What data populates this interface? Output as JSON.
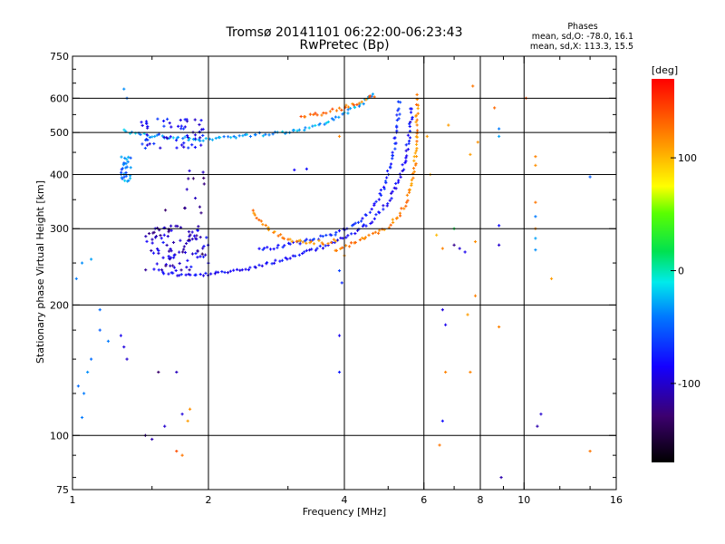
{
  "chart_data": {
    "type": "scatter",
    "title": "Tromsø 20141101 06:22:00-06:23:43",
    "subtitle": "RwPretec (Bp)",
    "xlabel": "Frequency [MHz]",
    "ylabel": "Stationary phase Virtual Height [km]",
    "x_scale": "log",
    "y_scale": "log",
    "xlim": [
      1,
      16
    ],
    "ylim": [
      75,
      750
    ],
    "x_ticks": [
      1,
      2,
      4,
      6,
      8,
      10,
      16
    ],
    "y_ticks": [
      75,
      100,
      200,
      300,
      400,
      500,
      600,
      750
    ],
    "x_gridlines": [
      2,
      4,
      6,
      8,
      10
    ],
    "y_gridlines": [
      100,
      200,
      300,
      400,
      500,
      600
    ],
    "grid": true,
    "colorbar": {
      "label": "[deg]",
      "range": [
        -170,
        170
      ],
      "ticks": [
        -100,
        0,
        100
      ],
      "colormap": "rainbow"
    },
    "phase_stats": {
      "title": "Phases",
      "line_o": "mean, sd,O: -78.0, 16.1",
      "line_x": "mean, sd,X: 113.3, 15.5"
    },
    "traces": [
      {
        "name": "",
        "phase_deg": -85,
        "points": [
          [
            1.55,
            240
          ],
          [
            1.65,
            236
          ],
          [
            1.8,
            234
          ],
          [
            2.0,
            235
          ],
          [
            2.3,
            240
          ],
          [
            2.6,
            247
          ],
          [
            3.0,
            256
          ],
          [
            3.4,
            267
          ],
          [
            3.8,
            279
          ],
          [
            4.2,
            293
          ],
          [
            4.6,
            313
          ],
          [
            5.0,
            345
          ],
          [
            5.3,
            390
          ],
          [
            5.5,
            450
          ],
          [
            5.6,
            520
          ],
          [
            5.65,
            580
          ]
        ]
      },
      {
        "name": "",
        "phase_deg": -72,
        "points": [
          [
            2.6,
            268
          ],
          [
            3.0,
            275
          ],
          [
            3.4,
            283
          ],
          [
            3.8,
            293
          ],
          [
            4.2,
            305
          ],
          [
            4.5,
            325
          ],
          [
            4.8,
            355
          ],
          [
            5.0,
            400
          ],
          [
            5.15,
            460
          ],
          [
            5.25,
            530
          ],
          [
            5.3,
            600
          ]
        ]
      },
      {
        "name": "",
        "phase_deg": 120,
        "points": [
          [
            3.8,
            268
          ],
          [
            4.2,
            278
          ],
          [
            4.6,
            290
          ],
          [
            5.0,
            303
          ],
          [
            5.3,
            322
          ],
          [
            5.55,
            355
          ],
          [
            5.7,
            400
          ],
          [
            5.78,
            470
          ],
          [
            5.8,
            540
          ],
          [
            5.82,
            620
          ]
        ]
      },
      {
        "name": "",
        "phase_deg": 118,
        "points": [
          [
            2.5,
            330
          ],
          [
            2.7,
            300
          ],
          [
            3.0,
            283
          ],
          [
            3.3,
            279
          ],
          [
            3.6,
            279
          ],
          [
            3.9,
            282
          ]
        ]
      },
      {
        "name": "",
        "phase_deg": -30,
        "points": [
          [
            1.3,
            505
          ],
          [
            1.5,
            490
          ],
          [
            1.7,
            485
          ],
          [
            1.9,
            482
          ],
          [
            2.1,
            485
          ],
          [
            2.3,
            490
          ],
          [
            2.6,
            495
          ],
          [
            2.9,
            500
          ],
          [
            3.2,
            508
          ],
          [
            3.5,
            520
          ],
          [
            3.8,
            540
          ],
          [
            4.1,
            560
          ],
          [
            4.4,
            585
          ],
          [
            4.7,
            620
          ]
        ]
      },
      {
        "name": "",
        "phase_deg": 130,
        "points": [
          [
            3.2,
            540
          ],
          [
            3.6,
            555
          ],
          [
            4.0,
            570
          ],
          [
            4.4,
            590
          ],
          [
            4.7,
            610
          ]
        ]
      }
    ],
    "clusters": [
      {
        "phase_deg": -100,
        "x_range": [
          1.45,
          2.0
        ],
        "y_range": [
          240,
          305
        ],
        "count": 90
      },
      {
        "phase_deg": -80,
        "x_range": [
          1.4,
          1.95
        ],
        "y_range": [
          460,
          540
        ],
        "count": 60
      },
      {
        "phase_deg": -40,
        "x_range": [
          1.28,
          1.35
        ],
        "y_range": [
          385,
          440
        ],
        "count": 28
      },
      {
        "phase_deg": -120,
        "x_range": [
          1.6,
          2.0
        ],
        "y_range": [
          260,
          420
        ],
        "count": 22
      }
    ],
    "scatter_points": [
      {
        "x": 1.02,
        "y": 230,
        "phase_deg": -40
      },
      {
        "x": 1.05,
        "y": 250,
        "phase_deg": -35
      },
      {
        "x": 1.1,
        "y": 255,
        "phase_deg": -30
      },
      {
        "x": 1.03,
        "y": 130,
        "phase_deg": -45
      },
      {
        "x": 1.06,
        "y": 125,
        "phase_deg": -40
      },
      {
        "x": 1.08,
        "y": 140,
        "phase_deg": -35
      },
      {
        "x": 1.1,
        "y": 150,
        "phase_deg": -45
      },
      {
        "x": 1.05,
        "y": 110,
        "phase_deg": -40
      },
      {
        "x": 1.15,
        "y": 175,
        "phase_deg": -50
      },
      {
        "x": 1.2,
        "y": 165,
        "phase_deg": -40
      },
      {
        "x": 1.3,
        "y": 160,
        "phase_deg": -95
      },
      {
        "x": 1.32,
        "y": 150,
        "phase_deg": -100
      },
      {
        "x": 1.28,
        "y": 170,
        "phase_deg": -90
      },
      {
        "x": 1.15,
        "y": 195,
        "phase_deg": -45
      },
      {
        "x": 1.45,
        "y": 100,
        "phase_deg": -120
      },
      {
        "x": 1.5,
        "y": 98,
        "phase_deg": -110
      },
      {
        "x": 1.6,
        "y": 105,
        "phase_deg": -100
      },
      {
        "x": 1.55,
        "y": 140,
        "phase_deg": -130
      },
      {
        "x": 1.7,
        "y": 140,
        "phase_deg": -105
      },
      {
        "x": 1.75,
        "y": 112,
        "phase_deg": -95
      },
      {
        "x": 1.8,
        "y": 108,
        "phase_deg": 110
      },
      {
        "x": 1.82,
        "y": 115,
        "phase_deg": 115
      },
      {
        "x": 1.75,
        "y": 90,
        "phase_deg": 125
      },
      {
        "x": 1.7,
        "y": 92,
        "phase_deg": 140
      },
      {
        "x": 1.3,
        "y": 630,
        "phase_deg": -35
      },
      {
        "x": 1.32,
        "y": 600,
        "phase_deg": -45
      },
      {
        "x": 3.1,
        "y": 410,
        "phase_deg": -85
      },
      {
        "x": 3.3,
        "y": 412,
        "phase_deg": -80
      },
      {
        "x": 3.9,
        "y": 240,
        "phase_deg": -60
      },
      {
        "x": 3.95,
        "y": 225,
        "phase_deg": -70
      },
      {
        "x": 3.9,
        "y": 170,
        "phase_deg": -90
      },
      {
        "x": 3.9,
        "y": 140,
        "phase_deg": -75
      },
      {
        "x": 3.9,
        "y": 490,
        "phase_deg": 120
      },
      {
        "x": 4.0,
        "y": 260,
        "phase_deg": 115
      },
      {
        "x": 6.1,
        "y": 490,
        "phase_deg": 110
      },
      {
        "x": 6.2,
        "y": 400,
        "phase_deg": 105
      },
      {
        "x": 6.4,
        "y": 290,
        "phase_deg": 100
      },
      {
        "x": 6.6,
        "y": 270,
        "phase_deg": 120
      },
      {
        "x": 6.6,
        "y": 195,
        "phase_deg": -95
      },
      {
        "x": 6.7,
        "y": 180,
        "phase_deg": -90
      },
      {
        "x": 6.7,
        "y": 140,
        "phase_deg": 120
      },
      {
        "x": 6.6,
        "y": 108,
        "phase_deg": -80
      },
      {
        "x": 6.5,
        "y": 95,
        "phase_deg": 125
      },
      {
        "x": 6.8,
        "y": 520,
        "phase_deg": 110
      },
      {
        "x": 7.0,
        "y": 300,
        "phase_deg": 20
      },
      {
        "x": 7.0,
        "y": 275,
        "phase_deg": -120
      },
      {
        "x": 7.2,
        "y": 270,
        "phase_deg": -100
      },
      {
        "x": 7.4,
        "y": 265,
        "phase_deg": -90
      },
      {
        "x": 7.5,
        "y": 190,
        "phase_deg": 110
      },
      {
        "x": 7.6,
        "y": 140,
        "phase_deg": 120
      },
      {
        "x": 7.7,
        "y": 640,
        "phase_deg": 125
      },
      {
        "x": 7.8,
        "y": 280,
        "phase_deg": 115
      },
      {
        "x": 7.8,
        "y": 210,
        "phase_deg": 120
      },
      {
        "x": 7.6,
        "y": 445,
        "phase_deg": 110
      },
      {
        "x": 7.9,
        "y": 475,
        "phase_deg": 115
      },
      {
        "x": 8.6,
        "y": 570,
        "phase_deg": 130
      },
      {
        "x": 8.8,
        "y": 510,
        "phase_deg": -40
      },
      {
        "x": 8.8,
        "y": 490,
        "phase_deg": -30
      },
      {
        "x": 8.8,
        "y": 305,
        "phase_deg": -80
      },
      {
        "x": 8.8,
        "y": 275,
        "phase_deg": -100
      },
      {
        "x": 8.8,
        "y": 178,
        "phase_deg": 120
      },
      {
        "x": 8.9,
        "y": 80,
        "phase_deg": -110
      },
      {
        "x": 10.1,
        "y": 600,
        "phase_deg": 140
      },
      {
        "x": 10.6,
        "y": 440,
        "phase_deg": 120
      },
      {
        "x": 10.6,
        "y": 420,
        "phase_deg": 115
      },
      {
        "x": 10.6,
        "y": 345,
        "phase_deg": 125
      },
      {
        "x": 10.6,
        "y": 320,
        "phase_deg": -40
      },
      {
        "x": 10.6,
        "y": 300,
        "phase_deg": 120
      },
      {
        "x": 10.6,
        "y": 285,
        "phase_deg": -30
      },
      {
        "x": 10.6,
        "y": 268,
        "phase_deg": -35
      },
      {
        "x": 10.9,
        "y": 112,
        "phase_deg": -100
      },
      {
        "x": 10.7,
        "y": 105,
        "phase_deg": -110
      },
      {
        "x": 11.5,
        "y": 230,
        "phase_deg": 110
      },
      {
        "x": 14.0,
        "y": 395,
        "phase_deg": -50
      },
      {
        "x": 14.0,
        "y": 92,
        "phase_deg": 125
      }
    ]
  }
}
